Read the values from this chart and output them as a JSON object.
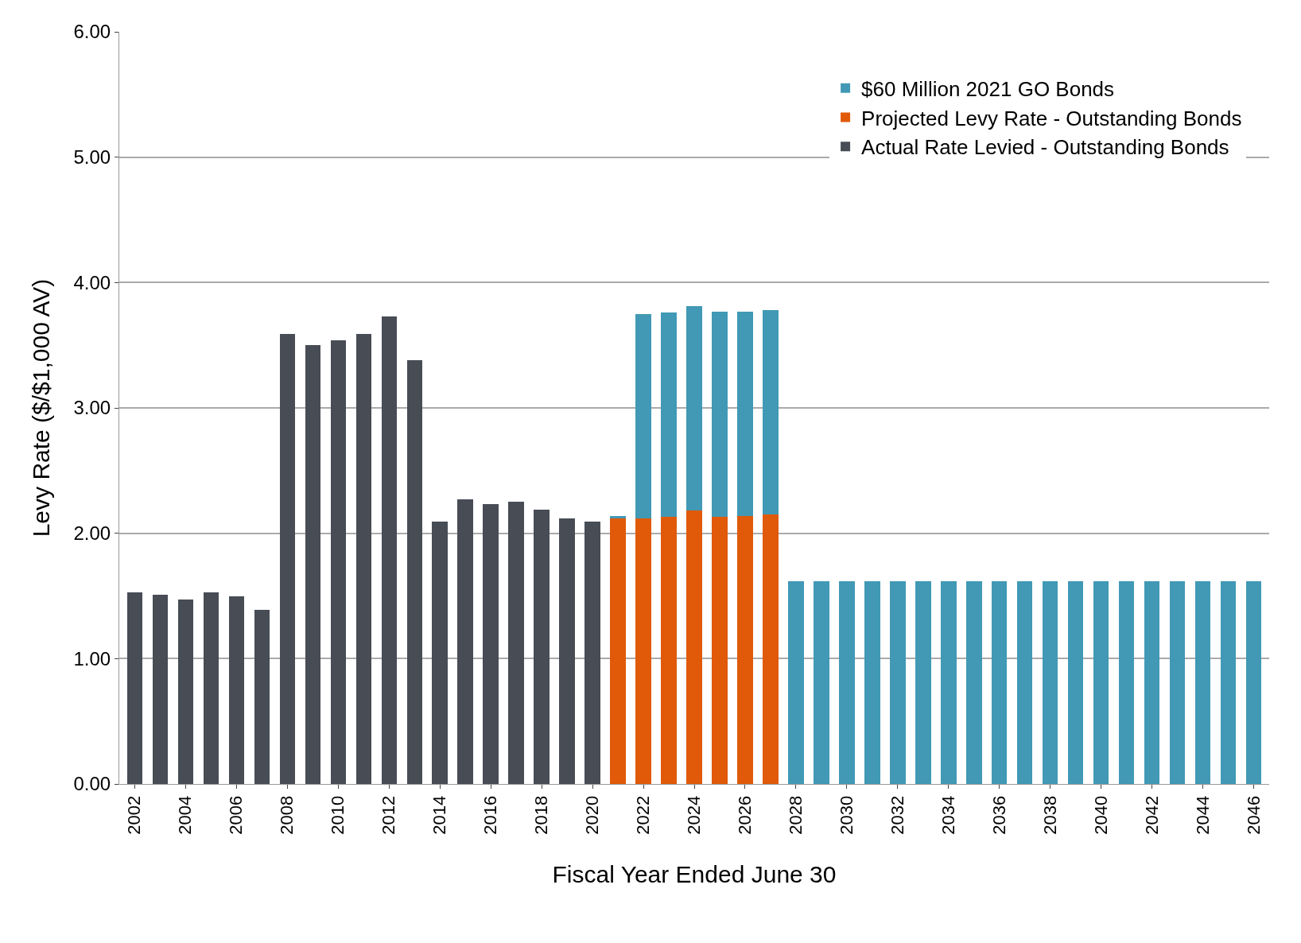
{
  "chart_data": {
    "type": "bar",
    "stacked": true,
    "xlabel": "Fiscal Year Ended June 30",
    "ylabel": "Levy Rate ($/$1,000 AV)",
    "categories": [
      "2002",
      null,
      "2004",
      null,
      "2006",
      null,
      "2008",
      null,
      "2010",
      null,
      "2012",
      null,
      "2014",
      null,
      "2016",
      null,
      "2018",
      null,
      "2020",
      null,
      "2022",
      null,
      "2024",
      null,
      "2026",
      null,
      "2028",
      null,
      "2030",
      null,
      "2032",
      null,
      "2034",
      null,
      "2036",
      null,
      "2038",
      null,
      "2040",
      null,
      "2042",
      null,
      "2044",
      null,
      "2046"
    ],
    "series": [
      {
        "name": "Actual Rate Levied - Outstanding Bonds",
        "color": "#474c55",
        "values": [
          1.53,
          1.51,
          1.47,
          1.53,
          1.5,
          1.39,
          3.59,
          3.5,
          3.54,
          3.59,
          3.73,
          3.38,
          2.09,
          2.27,
          2.23,
          2.25,
          2.19,
          2.12,
          2.09,
          null,
          null,
          null,
          null,
          null,
          null,
          null,
          null,
          null,
          null,
          null,
          null,
          null,
          null,
          null,
          null,
          null,
          null,
          null,
          null,
          null,
          null,
          null,
          null,
          null,
          null
        ]
      },
      {
        "name": "Projected Levy Rate - Outstanding Bonds",
        "color": "#e05a0a",
        "values": [
          null,
          null,
          null,
          null,
          null,
          null,
          null,
          null,
          null,
          null,
          null,
          null,
          null,
          null,
          null,
          null,
          null,
          null,
          null,
          2.12,
          2.12,
          2.13,
          2.18,
          2.13,
          2.14,
          2.15,
          null,
          null,
          null,
          null,
          null,
          null,
          null,
          null,
          null,
          null,
          null,
          null,
          null,
          null,
          null,
          null,
          null,
          null,
          null
        ]
      },
      {
        "name": "$60 Million 2021 GO Bonds",
        "color": "#4199b5",
        "values": [
          null,
          null,
          null,
          null,
          null,
          null,
          null,
          null,
          null,
          null,
          null,
          null,
          null,
          null,
          null,
          null,
          null,
          null,
          null,
          0.02,
          1.63,
          1.63,
          1.63,
          1.64,
          1.63,
          1.63,
          1.62,
          1.62,
          1.62,
          1.62,
          1.62,
          1.62,
          1.62,
          1.62,
          1.62,
          1.62,
          1.62,
          1.62,
          1.62,
          1.62,
          1.62,
          1.62,
          1.62,
          1.62,
          1.62
        ]
      }
    ],
    "ylim": [
      0,
      6
    ],
    "yticks": [
      {
        "value": 0,
        "label": "0.00"
      },
      {
        "value": 1,
        "label": "1.00"
      },
      {
        "value": 2,
        "label": "2.00"
      },
      {
        "value": 3,
        "label": "3.00"
      },
      {
        "value": 4,
        "label": "4.00"
      },
      {
        "value": 5,
        "label": "5.00"
      },
      {
        "value": 6,
        "label": "6.00"
      }
    ],
    "grid": "y",
    "legend": "top right"
  }
}
